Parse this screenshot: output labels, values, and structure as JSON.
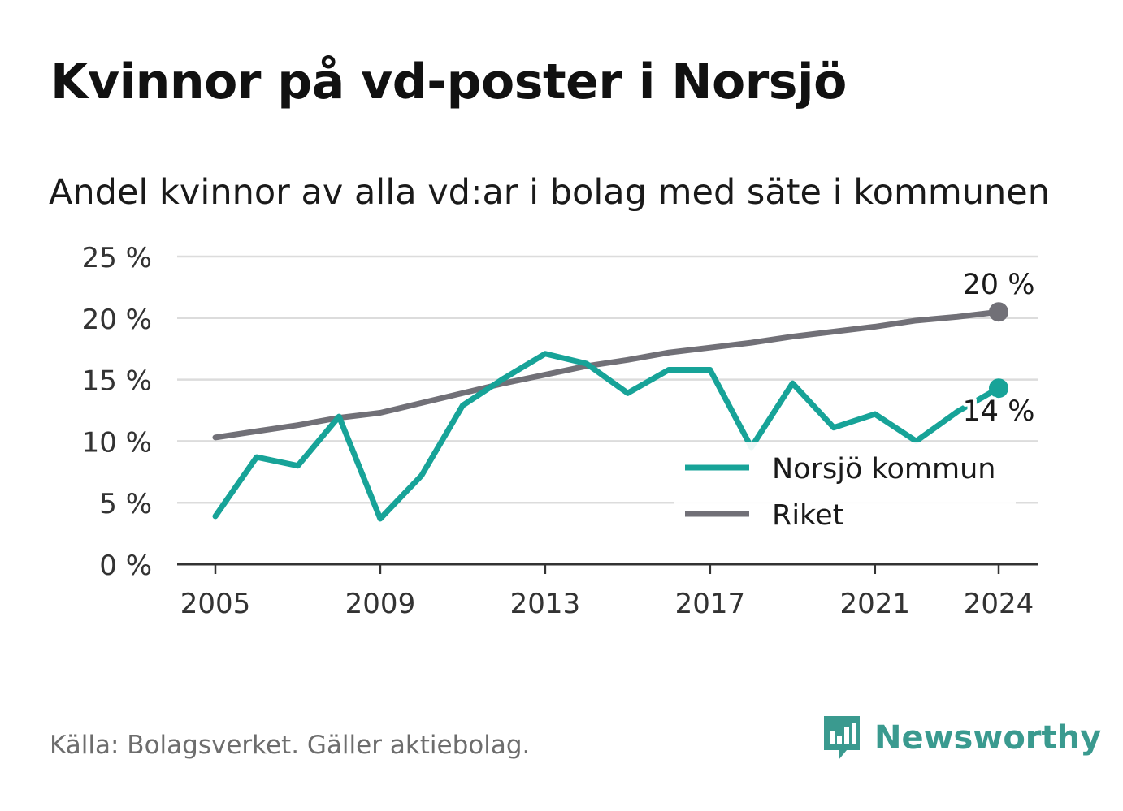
{
  "title": "Kvinnor på vd-poster i Norsjö",
  "subtitle": "Andel kvinnor av alla vd:ar i bolag med säte i kommunen",
  "source": "Källa: Bolagsverket. Gäller aktiebolag.",
  "brand": "Newsworthy",
  "colors": {
    "norsjo": "#17a398",
    "riket": "#717077",
    "grid": "#dcdcdc",
    "axis": "#333333",
    "brand": "#3a9a8f"
  },
  "chart_data": {
    "type": "line",
    "xlim": [
      2005,
      2024
    ],
    "ylim": [
      0,
      25
    ],
    "x_ticks": [
      2005,
      2009,
      2013,
      2017,
      2021,
      2024
    ],
    "x_tick_labels": [
      "2005",
      "2009",
      "2013",
      "2017",
      "2021",
      "2024"
    ],
    "y_ticks": [
      0,
      5,
      10,
      15,
      20,
      25
    ],
    "y_tick_labels": [
      "0 %",
      "5 %",
      "10 %",
      "15 %",
      "20 %",
      "25 %"
    ],
    "grid": true,
    "legend_position": "bottom-right",
    "x": [
      2005,
      2006,
      2007,
      2008,
      2009,
      2010,
      2011,
      2012,
      2013,
      2014,
      2015,
      2016,
      2017,
      2018,
      2019,
      2020,
      2021,
      2022,
      2023,
      2024
    ],
    "series": [
      {
        "name": "Norsjö kommun",
        "color": "#17a398",
        "values": [
          3.9,
          8.7,
          8.0,
          12.0,
          3.7,
          7.2,
          12.9,
          15.1,
          17.1,
          16.3,
          13.9,
          15.8,
          15.8,
          9.5,
          14.7,
          11.1,
          12.2,
          10.0,
          12.4,
          14.3
        ],
        "end_label": "14 %"
      },
      {
        "name": "Riket",
        "color": "#717077",
        "values": [
          10.3,
          10.8,
          11.3,
          11.9,
          12.3,
          13.1,
          13.9,
          14.7,
          15.4,
          16.1,
          16.6,
          17.2,
          17.6,
          18.0,
          18.5,
          18.9,
          19.3,
          19.8,
          20.1,
          20.5
        ],
        "end_label": "20 %"
      }
    ]
  }
}
